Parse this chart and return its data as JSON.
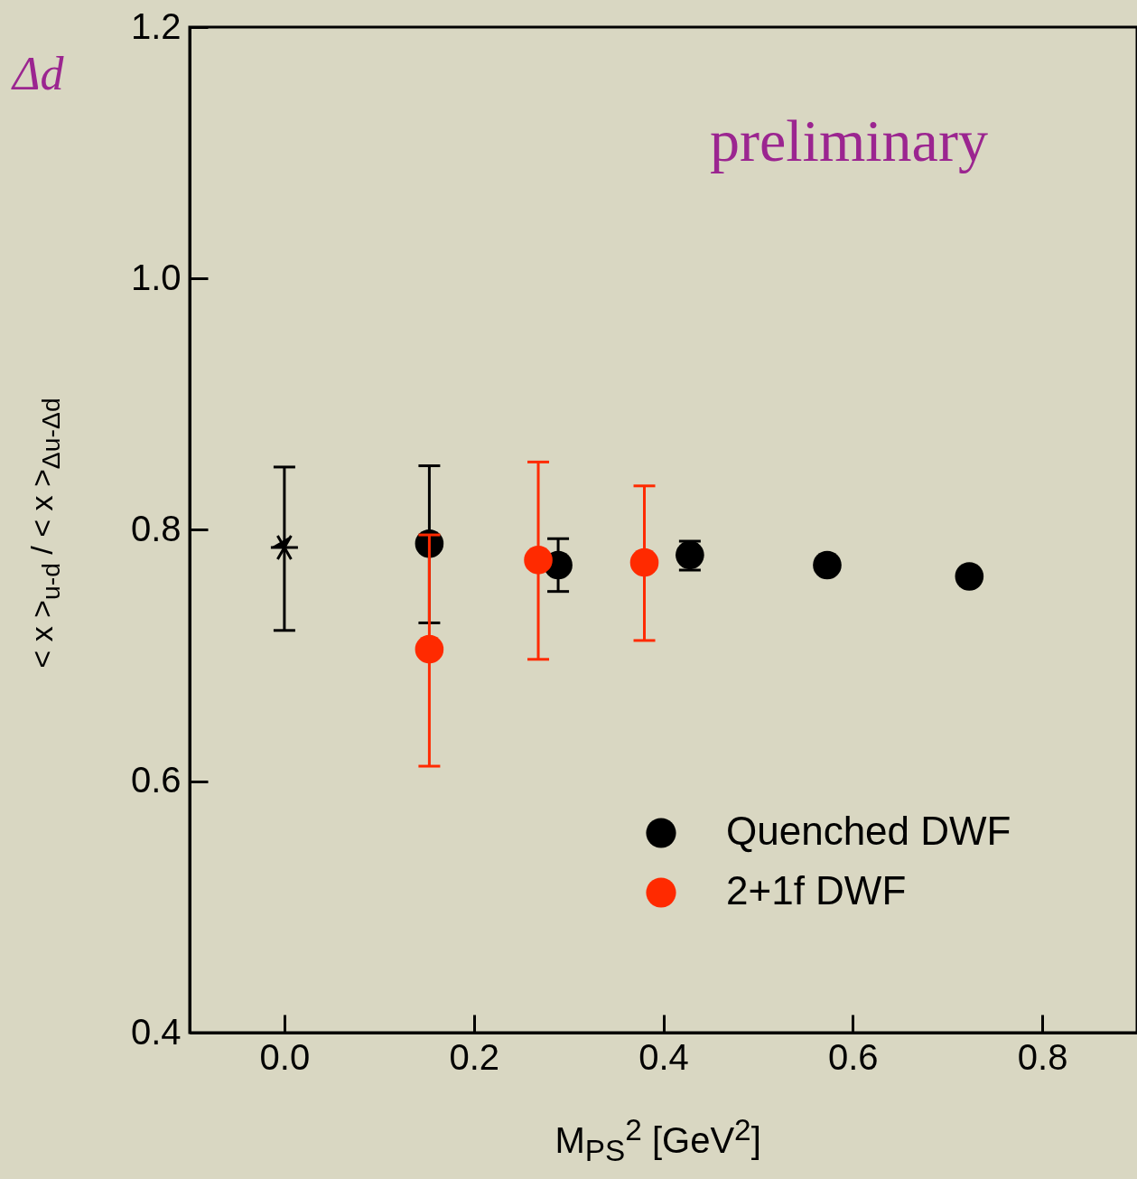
{
  "chart_data": {
    "type": "scatter",
    "xlabel": "M$_{PS}$$^{2}$ [GeV$^{2}$]",
    "ylabel": "< x >$_{u-d}$ / < x >$_{Δu-Δd}$",
    "xlim": [
      -0.1,
      0.9
    ],
    "xticks": [
      {
        "value": 0,
        "label": "0.0"
      },
      0.2,
      0.4,
      0.6,
      0.8
    ],
    "ylim": [
      0.4,
      1.2
    ],
    "yticks": [
      0.4,
      0.6,
      0.8,
      {
        "value": 1,
        "label": "1.0"
      },
      1.2
    ],
    "legend": "bottom right",
    "grid": false,
    "marker": "circle",
    "annotations": [
      "preliminary",
      "Δd"
    ],
    "series": [
      {
        "color": "#000000",
        "marker": "cross",
        "x": [
          0
        ],
        "values": [
          0.786
        ],
        "errors": [
          [
            0.72,
            0.85
          ]
        ]
      },
      {
        "name": "Quenched DWF",
        "color": "#000000",
        "x": [
          0.153,
          0.289,
          0.428,
          0.573,
          0.723
        ],
        "values": [
          0.789,
          0.772,
          0.78,
          0.772,
          0.763
        ],
        "errors": [
          [
            0.726,
            0.851
          ],
          [
            0.751,
            0.793
          ],
          [
            0.768,
            0.791
          ],
          null,
          null
        ]
      },
      {
        "name": "2+1f DWF",
        "color": "#ff2a00",
        "x": [
          0.153,
          0.268,
          0.38
        ],
        "values": [
          0.705,
          0.776,
          0.774
        ],
        "errors": [
          [
            0.612,
            0.796
          ],
          [
            0.697,
            0.854
          ],
          [
            0.712,
            0.835
          ]
        ]
      }
    ]
  }
}
